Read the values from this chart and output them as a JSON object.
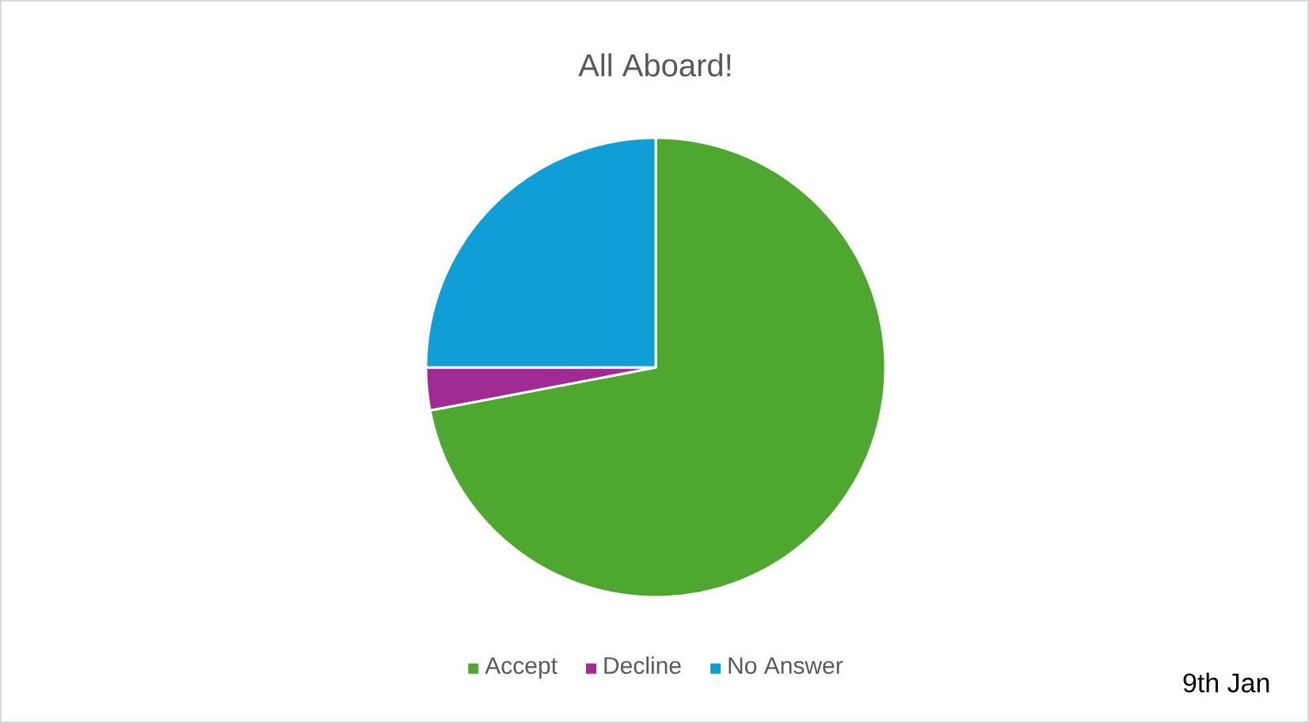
{
  "chart_data": {
    "type": "pie",
    "title": "All Aboard!",
    "categories": [
      "Accept",
      "Decline",
      "No Answer"
    ],
    "values": [
      72,
      3,
      25
    ],
    "colors": [
      "#4ea72e",
      "#a02b93",
      "#0f9ed5"
    ],
    "legend": "bottom",
    "annotations": [
      "9th Jan"
    ]
  }
}
